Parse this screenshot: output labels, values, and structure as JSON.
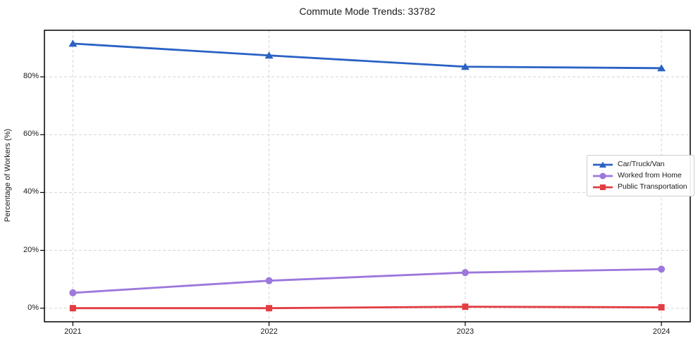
{
  "chart_data": {
    "type": "line",
    "title": "Commute Mode Trends: 33782",
    "xlabel": "",
    "ylabel": "Percentage of Workers (%)",
    "x": [
      2021,
      2022,
      2023,
      2024
    ],
    "x_tick_labels": [
      "2021",
      "2022",
      "2023",
      "2024"
    ],
    "y_ticks": [
      {
        "value": 0,
        "label": "0%"
      },
      {
        "value": 20,
        "label": "20%"
      },
      {
        "value": 40,
        "label": "40%"
      },
      {
        "value": 60,
        "label": "60%"
      },
      {
        "value": 80,
        "label": "80%"
      }
    ],
    "xlim": [
      2020.855,
      2024.147
    ],
    "ylim": [
      -4.7,
      96.1
    ],
    "grid": true,
    "grid_style": "dashed",
    "grid_color": "#d4d4d4",
    "spine_color": "#000000",
    "legend_position": "center-right",
    "series": [
      {
        "name": "Car/Truck/Van",
        "marker": "triangle",
        "color": "#2a62c4",
        "values": [
          91.5,
          87.4,
          83.5,
          83.0
        ]
      },
      {
        "name": "Worked from Home",
        "marker": "circle",
        "color": "#9c77dc",
        "values": [
          5.3,
          9.5,
          12.3,
          13.5
        ]
      },
      {
        "name": "Public Transportation",
        "marker": "square",
        "color": "#e23d42",
        "values": [
          0.0,
          0.0,
          0.5,
          0.3
        ]
      }
    ]
  }
}
